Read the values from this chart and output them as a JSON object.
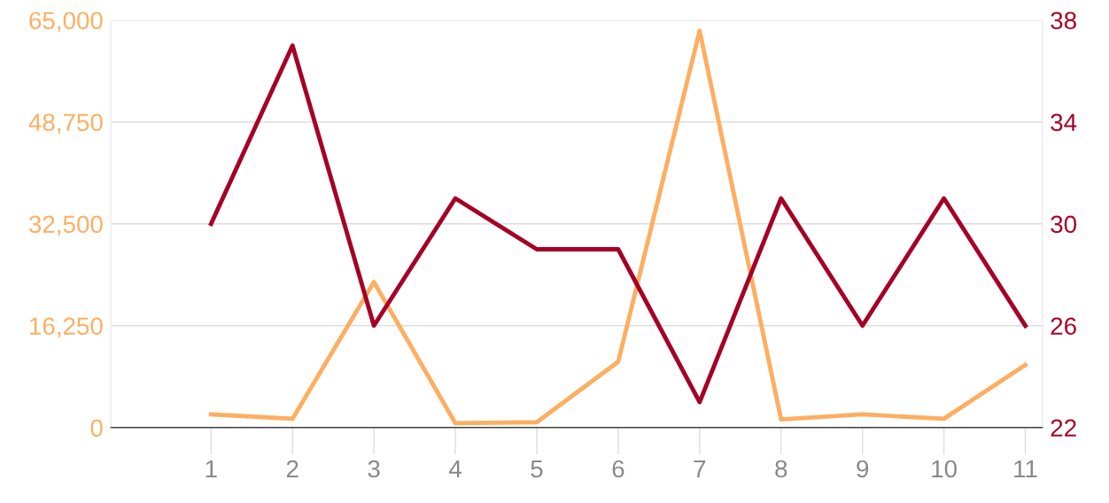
{
  "chart_data": {
    "type": "line",
    "categories": [
      "1",
      "2",
      "3",
      "4",
      "5",
      "6",
      "7",
      "8",
      "9",
      "10",
      "11"
    ],
    "series": [
      {
        "color": "#fdae61",
        "values": [
          2100,
          1400,
          23200,
          700,
          850,
          10500,
          63300,
          1300,
          2100,
          1400,
          10000
        ]
      },
      {
        "color": "#a50026",
        "axis": "y2",
        "values": [
          30,
          37,
          26,
          31,
          29,
          29,
          23,
          31,
          26,
          31,
          26
        ]
      }
    ],
    "ylim": [
      0,
      65000
    ],
    "yticks": [
      0,
      {
        "value": 16250,
        "label": "16,250"
      },
      {
        "value": 32500,
        "label": "32,500"
      },
      {
        "value": 48750,
        "label": "48,750"
      },
      {
        "value": 65000,
        "label": "65,000"
      }
    ],
    "y2lim": [
      22,
      38
    ],
    "y2ticks": [
      22,
      26,
      30,
      34,
      38
    ],
    "grid": "y",
    "legend": false,
    "marker": "none",
    "line_style": "solid"
  }
}
